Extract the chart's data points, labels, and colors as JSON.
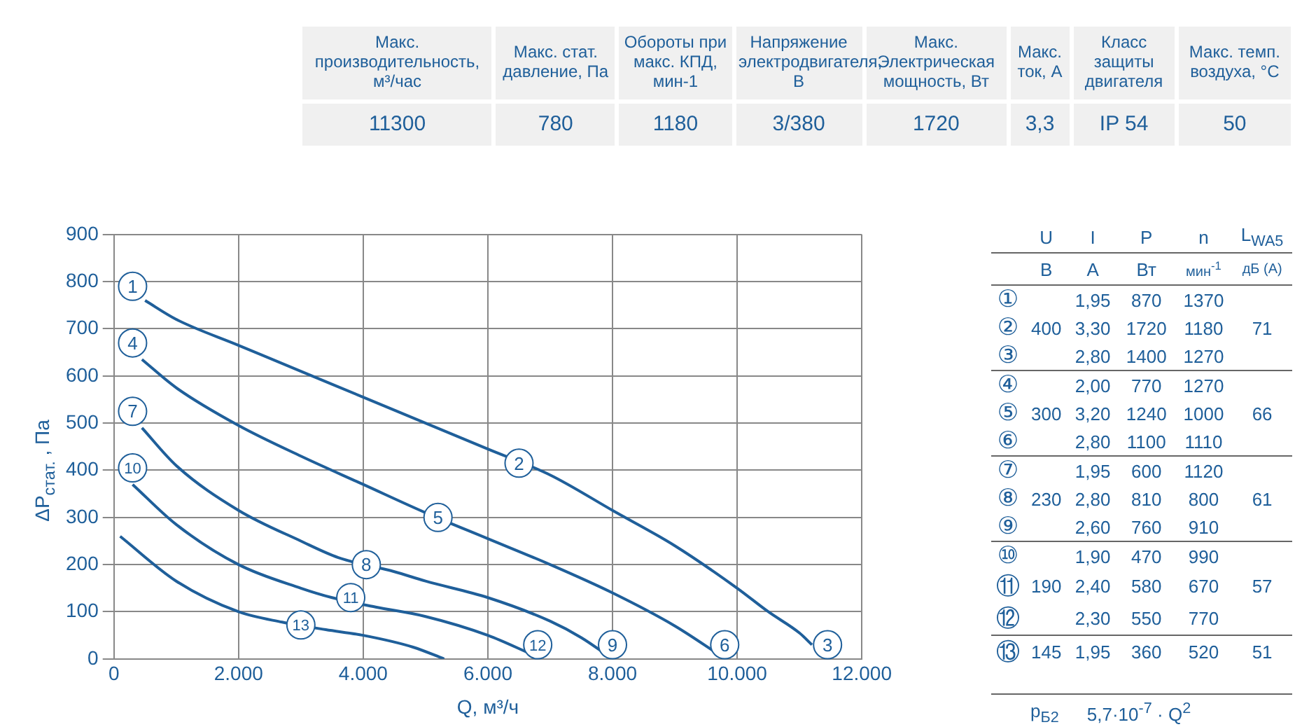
{
  "chart_data": [
    {
      "type": "other",
      "cell_labels": [
        [
          null,
          "Макс. производительность, м³/час",
          "Макс. стат. давление, Па",
          "Обороты при макс. КПД, мин-1",
          "Напряжение электродвигателя, В",
          "Макс. Электрическая мощность, Вт",
          "Макс. ток, А",
          "Класс защиты двигателя",
          "Макс. темп. воздуха, °C"
        ],
        [
          null,
          "11300",
          "780",
          "1180",
          "3/380",
          "1720",
          "3,3",
          "IP 54",
          "50"
        ]
      ]
    },
    {
      "type": "line",
      "xlabel": "Q, м³/ч",
      "ylabel": "ΔP$_{стат.}$ , Па",
      "xlim": [
        0,
        12000
      ],
      "ylim": [
        0,
        900
      ],
      "xticks": [
        0,
        {
          "value": 2000,
          "label": "2.000"
        },
        {
          "value": 4000,
          "label": "4.000"
        },
        {
          "value": 6000,
          "label": "6.000"
        },
        {
          "value": 8000,
          "label": "8.000"
        },
        {
          "value": 10000,
          "label": "10.000"
        },
        {
          "value": 12000,
          "label": "12.000"
        }
      ],
      "yticks": [
        0,
        100,
        200,
        300,
        400,
        500,
        600,
        700,
        800,
        900
      ],
      "grid": true,
      "legend": false,
      "marker": "none",
      "line_style": "solid",
      "series": [
        {
          "color": "#1f5f9a",
          "x": [
            500,
            1000,
            2000,
            3000,
            4000,
            5000,
            6000,
            7000,
            8000,
            9000,
            10000,
            10500,
            11000,
            11200
          ],
          "values": [
            760,
            720,
            665,
            610,
            555,
            500,
            445,
            390,
            315,
            240,
            150,
            100,
            55,
            30
          ]
        },
        {
          "color": "#1f5f9a",
          "x": [
            450,
            1000,
            2000,
            3000,
            4000,
            5000,
            6000,
            7000,
            8000,
            9000,
            9700
          ],
          "values": [
            635,
            575,
            495,
            430,
            370,
            310,
            255,
            200,
            140,
            70,
            10
          ]
        },
        {
          "color": "#1f5f9a",
          "x": [
            450,
            1000,
            2000,
            3000,
            3600,
            4500,
            5000,
            6000,
            7000,
            7500,
            8000
          ],
          "values": [
            490,
            410,
            315,
            250,
            215,
            185,
            165,
            130,
            80,
            45,
            0
          ]
        },
        {
          "color": "#1f5f9a",
          "x": [
            300,
            1000,
            2000,
            3000,
            3500,
            4200,
            5000,
            6000,
            6700
          ],
          "values": [
            370,
            285,
            200,
            150,
            130,
            110,
            90,
            50,
            10
          ]
        },
        {
          "color": "#1f5f9a",
          "x": [
            100,
            1000,
            2000,
            2700,
            3400,
            4000,
            4800,
            5300
          ],
          "values": [
            260,
            165,
            100,
            78,
            62,
            50,
            25,
            0
          ]
        }
      ],
      "annotations": [
        {
          "text": "1",
          "x": 300,
          "y": 790
        },
        {
          "text": "2",
          "x": 6500,
          "y": 415
        },
        {
          "text": "3",
          "x": 11450,
          "y": 30
        },
        {
          "text": "4",
          "x": 300,
          "y": 670
        },
        {
          "text": "5",
          "x": 5200,
          "y": 300
        },
        {
          "text": "6",
          "x": 9800,
          "y": 30
        },
        {
          "text": "7",
          "x": 300,
          "y": 525
        },
        {
          "text": "8",
          "x": 4050,
          "y": 200
        },
        {
          "text": "9",
          "x": 8000,
          "y": 30
        },
        {
          "text": "10",
          "x": 300,
          "y": 405
        },
        {
          "text": "11",
          "x": 3800,
          "y": 130
        },
        {
          "text": "12",
          "x": 6800,
          "y": 30
        },
        {
          "text": "13",
          "x": 3000,
          "y": 72
        }
      ]
    },
    {
      "type": "other",
      "cell_labels": [
        [
          null,
          "U",
          "I",
          "P",
          "n",
          "L$_{WA5}$"
        ],
        [
          null,
          "В",
          "А",
          "Вт",
          "мин$^{-1}$",
          "дБ (А)"
        ],
        [
          "①",
          null,
          "1,95",
          "870",
          "1370",
          null
        ],
        [
          "②",
          "400",
          "3,30",
          "1720",
          "1180",
          "71"
        ],
        [
          "③",
          null,
          "2,80",
          "1400",
          "1270",
          null
        ],
        [
          "④",
          null,
          "2,00",
          "770",
          "1270",
          null
        ],
        [
          "⑤",
          "300",
          "3,20",
          "1240",
          "1000",
          "66"
        ],
        [
          "⑥",
          null,
          "2,80",
          "1100",
          "1110",
          null
        ],
        [
          "⑦",
          null,
          "1,95",
          "600",
          "1120",
          null
        ],
        [
          "⑧",
          "230",
          "2,80",
          "810",
          "800",
          "61"
        ],
        [
          "⑨",
          null,
          "2,60",
          "760",
          "910",
          null
        ],
        [
          "⑩",
          null,
          "1,90",
          "470",
          "990",
          null
        ],
        [
          "⑪",
          "190",
          "2,40",
          "580",
          "670",
          "57"
        ],
        [
          "⑫",
          null,
          "2,30",
          "550",
          "770",
          null
        ],
        [
          "⑬",
          "145",
          "1,95",
          "360",
          "520",
          "51"
        ]
      ],
      "annotations": [
        "p$_{Б2}$",
        "5,7·10$^{-7}$ · Q$^{2}$"
      ]
    }
  ]
}
